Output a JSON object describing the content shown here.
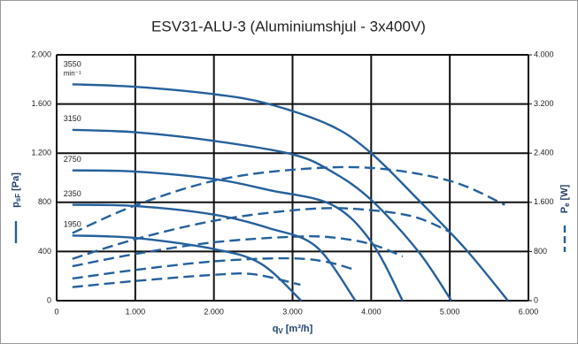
{
  "chart_data": {
    "type": "line",
    "title": "ESV31-ALU-3 (Aluminiumshjul - 3x400V)",
    "xlabel": {
      "symbol": "q",
      "subscript": "V",
      "unit": "[m³/h]"
    },
    "ylabel": {
      "symbol": "p",
      "subscript": "sF",
      "unit": "[Pa]"
    },
    "y2label": {
      "symbol": "P",
      "subscript": "e",
      "unit": "[W]"
    },
    "xlim": [
      0,
      6000
    ],
    "xticks": [
      0,
      {
        "value": 1000,
        "label": "1.000"
      },
      {
        "value": 2000,
        "label": "2.000"
      },
      {
        "value": 3000,
        "label": "3.000"
      },
      {
        "value": 4000,
        "label": "4.000"
      },
      {
        "value": 5000,
        "label": "5.000"
      },
      {
        "value": 6000,
        "label": "6.000"
      }
    ],
    "ylim": [
      0,
      2000
    ],
    "yticks": [
      0,
      400,
      800,
      {
        "value": 1200,
        "label": "1.200"
      },
      {
        "value": 1600,
        "label": "1.600"
      },
      {
        "value": 2000,
        "label": "2.000"
      }
    ],
    "y2lim": [
      0,
      4000
    ],
    "y2ticks": [
      0,
      800,
      {
        "value": 1600,
        "label": "1.600"
      },
      {
        "value": 2400,
        "label": "2.400"
      },
      {
        "value": 3200,
        "label": "3.200"
      },
      {
        "value": 4000,
        "label": "4.000"
      }
    ],
    "grid": true,
    "annotations": [
      "3550",
      "min⁻¹",
      "3150",
      "2750",
      "2350",
      "1950"
    ],
    "series": [
      {
        "color": "#25609c",
        "x": [
          200,
          1000,
          2000,
          2700,
          3500,
          4000,
          4600,
          5200,
          5740
        ],
        "values": [
          1760,
          1740,
          1680,
          1600,
          1420,
          1200,
          820,
          420,
          0
        ]
      },
      {
        "color": "#25609c",
        "x": [
          200,
          1000,
          2000,
          3000,
          3500,
          4000,
          4600,
          5020
        ],
        "values": [
          1390,
          1370,
          1300,
          1190,
          1050,
          820,
          400,
          0
        ]
      },
      {
        "color": "#25609c",
        "x": [
          200,
          1000,
          2000,
          2700,
          3500,
          4000,
          4400
        ],
        "values": [
          1060,
          1050,
          990,
          900,
          780,
          480,
          0
        ]
      },
      {
        "color": "#25609c",
        "x": [
          200,
          1000,
          2000,
          2700,
          3300,
          3800
        ],
        "values": [
          780,
          770,
          700,
          590,
          440,
          0
        ]
      },
      {
        "color": "#25609c",
        "x": [
          200,
          1000,
          2000,
          2600,
          3110
        ],
        "values": [
          530,
          510,
          420,
          300,
          0
        ]
      },
      {
        "color": "#25609c",
        "axis": "y2",
        "dashed": true,
        "x": [
          200,
          1000,
          2000,
          3000,
          4000,
          5000,
          5700
        ],
        "values": [
          1100,
          1550,
          1950,
          2130,
          2160,
          1950,
          1560
        ]
      },
      {
        "color": "#25609c",
        "axis": "y2",
        "dashed": true,
        "x": [
          200,
          1000,
          2000,
          3000,
          3700,
          4500,
          5000
        ],
        "values": [
          680,
          1000,
          1300,
          1470,
          1500,
          1380,
          1120
        ]
      },
      {
        "color": "#25609c",
        "axis": "y2",
        "dashed": true,
        "x": [
          200,
          1000,
          2000,
          3000,
          3500,
          4000,
          4400
        ],
        "values": [
          560,
          760,
          950,
          1040,
          1030,
          920,
          720
        ]
      },
      {
        "color": "#25609c",
        "axis": "y2",
        "dashed": true,
        "x": [
          200,
          1000,
          2000,
          2900,
          3400,
          3800
        ],
        "values": [
          360,
          500,
          640,
          690,
          640,
          500
        ]
      },
      {
        "color": "#25609c",
        "axis": "y2",
        "dashed": true,
        "x": [
          200,
          1000,
          2000,
          2500,
          3100
        ],
        "values": [
          220,
          320,
          420,
          430,
          260
        ]
      }
    ]
  }
}
